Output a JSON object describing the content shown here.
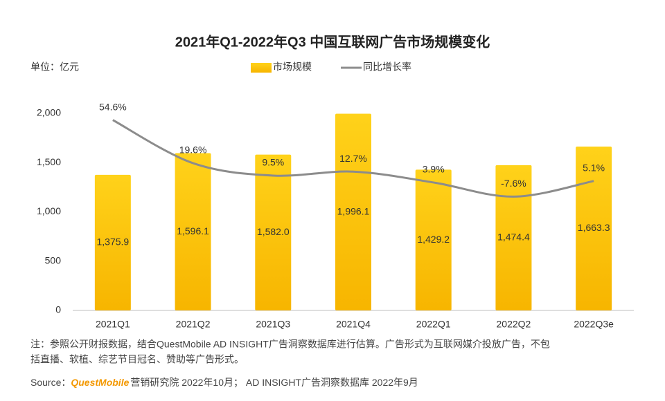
{
  "chart_data": {
    "type": "bar",
    "title": "2021年Q1-2022年Q3 中国互联网广告市场规模变化",
    "unit_label": "单位：亿元",
    "categories": [
      "2021Q1",
      "2021Q2",
      "2021Q3",
      "2021Q4",
      "2022Q1",
      "2022Q2",
      "2022Q3e"
    ],
    "series": [
      {
        "name": "市场规模",
        "type": "bar",
        "color": "#fcc200",
        "values": [
          1375.9,
          1596.1,
          1582.0,
          1996.1,
          1429.2,
          1474.4,
          1663.3
        ],
        "value_labels": [
          "1,375.9",
          "1,596.1",
          "1,582.0",
          "1,996.1",
          "1,429.2",
          "1,474.4",
          "1,663.3"
        ]
      },
      {
        "name": "同比增长率",
        "type": "line",
        "axis": "y2",
        "color": "#8c8c8c",
        "values": [
          54.6,
          19.6,
          9.5,
          12.7,
          3.9,
          -7.6,
          5.1
        ],
        "value_labels": [
          "54.6%",
          "19.6%",
          "9.5%",
          "12.7%",
          "3.9%",
          "-7.6%",
          "5.1%"
        ]
      }
    ],
    "ylim": [
      0,
      2000
    ],
    "yticks": [
      0,
      500,
      {
        "value": 1000,
        "label": "1,000"
      },
      {
        "value": 1500,
        "label": "1,500"
      },
      {
        "value": 2000,
        "label": "2,000"
      }
    ],
    "y2lim": [
      -100,
      60
    ],
    "legend": "top",
    "note": [
      "注：参照公开财报数据，结合QuestMobile AD INSIGHT广告洞察数据库进行估算。广告形式为互联网媒介投放广告，不包",
      "括直播、软植、综艺节目冠名、赞助等广告形式。"
    ],
    "source": {
      "label": "Source：",
      "brand": "QuestMobile",
      "text": "营销研究院 2022年10月； AD INSIGHT广告洞察数据库 2022年9月"
    }
  }
}
